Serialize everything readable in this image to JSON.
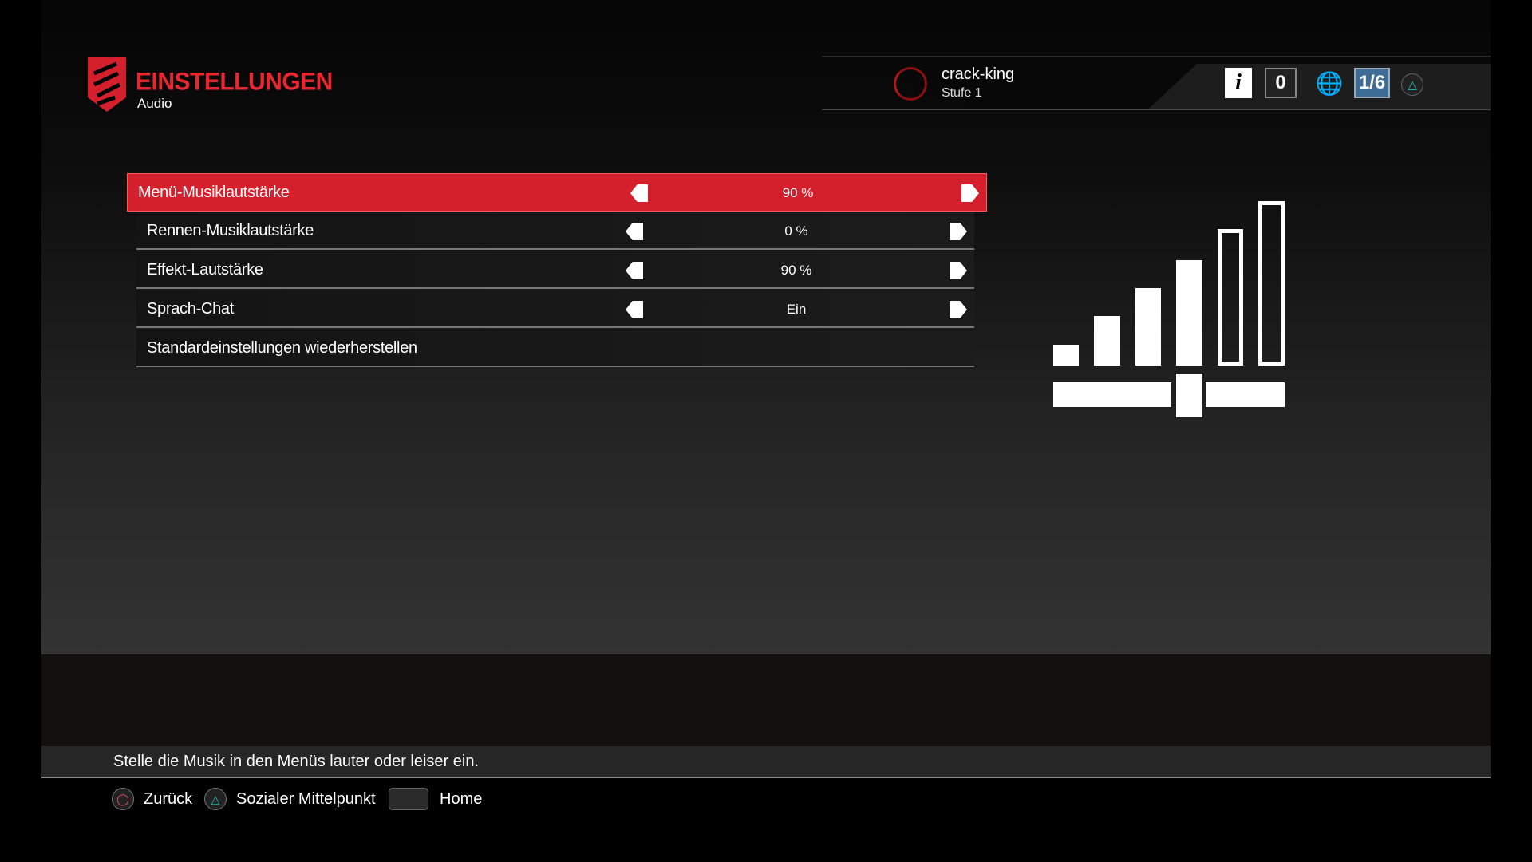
{
  "header": {
    "title": "EINSTELLUNGEN",
    "subtitle": "Audio"
  },
  "user": {
    "name": "crack-king",
    "level": "Stufe 1",
    "notifications": "0",
    "party": "1/6"
  },
  "colors": {
    "accent": "#d4202c",
    "party": "#3d6d97"
  },
  "settings": [
    {
      "label": "Menü-Musiklautstärke",
      "value": "90 %",
      "selected": true
    },
    {
      "label": "Rennen-Musiklautstärke",
      "value": "0 %"
    },
    {
      "label": "Effekt-Lautstärke",
      "value": "90 %"
    },
    {
      "label": "Sprach-Chat",
      "value": "Ein"
    },
    {
      "label": "Standardeinstellungen wiederherstellen"
    }
  ],
  "volume_level_percent": 90,
  "hint": "Stelle die Musik in den Menüs lauter oder leiser ein.",
  "footer": {
    "back": "Zurück",
    "social": "Sozialer Mittelpunkt",
    "home": "Home"
  }
}
